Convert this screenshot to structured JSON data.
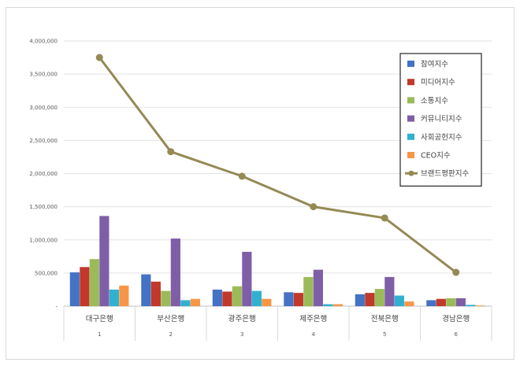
{
  "chart_data": {
    "type": "bar",
    "x_groups": [
      {
        "label": "대구은행",
        "index": "1"
      },
      {
        "label": "부산은행",
        "index": "2"
      },
      {
        "label": "광주은행",
        "index": "3"
      },
      {
        "label": "제주은행",
        "index": "4"
      },
      {
        "label": "전북은행",
        "index": "5"
      },
      {
        "label": "경남은행",
        "index": "6"
      }
    ],
    "ylim": [
      0,
      4000000
    ],
    "yticks": [
      "-",
      "500,000",
      "1,000,000",
      "1,500,000",
      "2,000,000",
      "2,500,000",
      "3,000,000",
      "3,500,000",
      "4,000,000"
    ],
    "grid": true,
    "legend_position": "top-right",
    "series": [
      {
        "name": "참여지수",
        "color": "#4472c4",
        "type": "bar",
        "values": [
          510000,
          480000,
          250000,
          210000,
          180000,
          90000
        ]
      },
      {
        "name": "미디어지수",
        "color": "#c0392b",
        "type": "bar",
        "values": [
          590000,
          370000,
          220000,
          200000,
          200000,
          110000
        ]
      },
      {
        "name": "소통지수",
        "color": "#9bbb59",
        "type": "bar",
        "values": [
          710000,
          230000,
          300000,
          440000,
          260000,
          120000
        ]
      },
      {
        "name": "커뮤니티지수",
        "color": "#7f5ea8",
        "type": "bar",
        "values": [
          1360000,
          1020000,
          820000,
          550000,
          440000,
          120000
        ]
      },
      {
        "name": "사회공헌지수",
        "color": "#31b0d0",
        "type": "bar",
        "values": [
          250000,
          90000,
          230000,
          30000,
          160000,
          20000
        ]
      },
      {
        "name": "CEO지수",
        "color": "#f79646",
        "type": "bar",
        "values": [
          310000,
          110000,
          110000,
          30000,
          70000,
          10000
        ]
      },
      {
        "name": "브랜드평판지수",
        "color": "#948a54",
        "type": "line",
        "values": [
          3750000,
          2330000,
          1960000,
          1500000,
          1330000,
          510000
        ]
      }
    ]
  }
}
